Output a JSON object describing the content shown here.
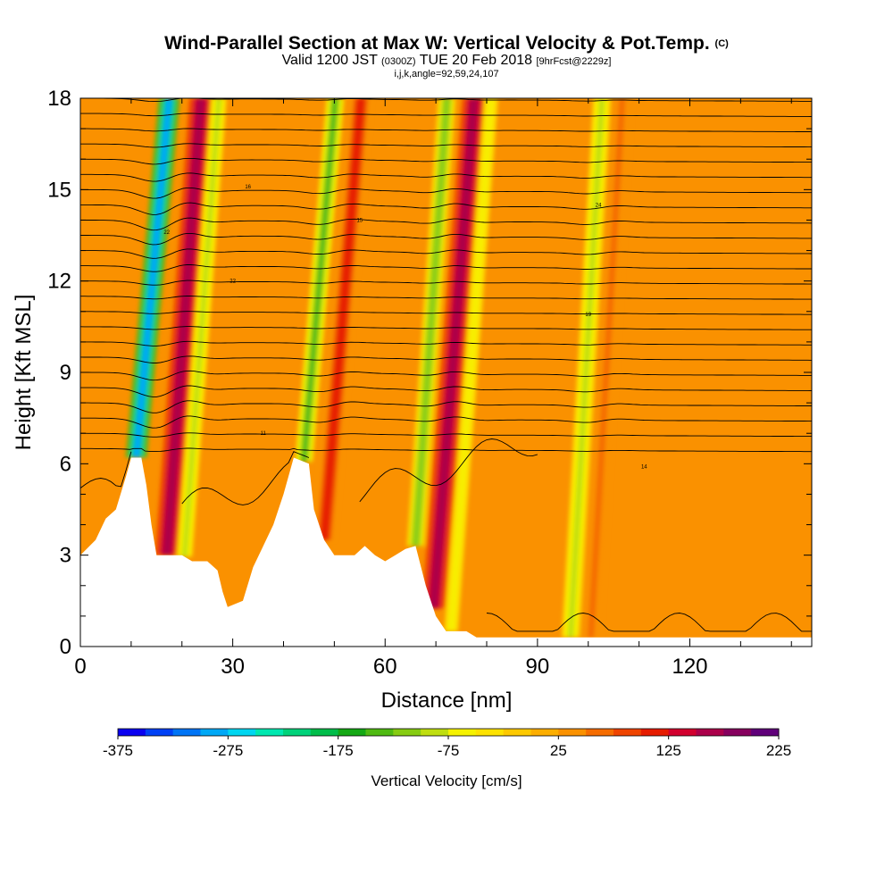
{
  "title": {
    "main": "Wind-Parallel Section at Max W: Vertical Velocity & Pot.Temp.",
    "copyright": "(C)",
    "valid_prefix": "Valid 1200 JST",
    "valid_utc": "(0300Z)",
    "valid_date": "TUE 20 Feb 2018",
    "forecast": "[9hrFcst@2229z]",
    "indices": "i,j,k,angle=92,59,24,107"
  },
  "chart_data": {
    "type": "heatmap",
    "xlabel": "Distance [nm]",
    "ylabel": "Height [Kft MSL]",
    "xlim": [
      0,
      144
    ],
    "ylim": [
      0,
      18
    ],
    "x_ticks": [
      0,
      30,
      60,
      90,
      120
    ],
    "y_ticks": [
      0,
      3,
      6,
      9,
      12,
      15,
      18
    ],
    "background_value": 30,
    "terrain": [
      [
        0,
        3.0
      ],
      [
        3,
        3.5
      ],
      [
        5,
        4.2
      ],
      [
        7,
        4.5
      ],
      [
        9,
        5.6
      ],
      [
        10,
        6.2
      ],
      [
        12,
        6.2
      ],
      [
        13,
        5.3
      ],
      [
        14,
        4.0
      ],
      [
        15,
        3.0
      ],
      [
        20,
        3.0
      ],
      [
        22,
        2.8
      ],
      [
        25,
        2.8
      ],
      [
        27,
        2.5
      ],
      [
        28,
        1.8
      ],
      [
        29,
        1.3
      ],
      [
        32,
        1.5
      ],
      [
        34,
        2.6
      ],
      [
        36,
        3.3
      ],
      [
        38,
        4.0
      ],
      [
        40,
        5.0
      ],
      [
        42,
        6.2
      ],
      [
        45,
        6.0
      ],
      [
        46,
        4.5
      ],
      [
        48,
        3.5
      ],
      [
        50,
        3.0
      ],
      [
        54,
        3.0
      ],
      [
        56,
        3.3
      ],
      [
        58,
        3.0
      ],
      [
        60,
        2.8
      ],
      [
        62,
        3.0
      ],
      [
        64,
        3.2
      ],
      [
        66,
        3.3
      ],
      [
        68,
        2.0
      ],
      [
        70,
        1.0
      ],
      [
        72,
        0.5
      ],
      [
        76,
        0.5
      ],
      [
        78,
        0.3
      ],
      [
        144,
        0.3
      ]
    ],
    "bands": [
      {
        "x": 11.0,
        "slope": 0.55,
        "value": -300,
        "width": 2.2
      },
      {
        "x": 17.0,
        "slope": 0.45,
        "value": 170,
        "width": 2.4
      },
      {
        "x": 20.5,
        "slope": 0.45,
        "value": -90,
        "width": 1.6
      },
      {
        "x": 44.0,
        "slope": 0.52,
        "value": -130,
        "width": 1.8
      },
      {
        "x": 48.0,
        "slope": 0.5,
        "value": 100,
        "width": 2.2
      },
      {
        "x": 66.0,
        "slope": 0.42,
        "value": -110,
        "width": 1.8
      },
      {
        "x": 69.5,
        "slope": 0.48,
        "value": 170,
        "width": 2.4
      },
      {
        "x": 73.0,
        "slope": 0.45,
        "value": -60,
        "width": 1.4
      },
      {
        "x": 96.5,
        "slope": 0.35,
        "value": -90,
        "width": 1.8
      },
      {
        "x": 100.5,
        "slope": 0.35,
        "value": 65,
        "width": 2.0
      }
    ],
    "colorbar": {
      "label": "Vertical Velocity [cm/s]",
      "tick_labels": [
        "-375",
        "-275",
        "-175",
        "-75",
        "25",
        "125",
        "225"
      ],
      "colors": [
        "#0a00f0",
        "#0040f5",
        "#0074f5",
        "#00a8f5",
        "#00d6f0",
        "#00e8b0",
        "#00d27a",
        "#00bd4a",
        "#14a814",
        "#4fba12",
        "#86cc12",
        "#bfde10",
        "#f5f200",
        "#fde200",
        "#fdc900",
        "#fcae00",
        "#fa9100",
        "#f56c00",
        "#ef4400",
        "#e61c00",
        "#d2002e",
        "#ab004a",
        "#86005e",
        "#60007a"
      ]
    },
    "contour_labels": [
      "16",
      "15",
      "24",
      "22",
      "22",
      "19",
      "11",
      "14"
    ]
  }
}
